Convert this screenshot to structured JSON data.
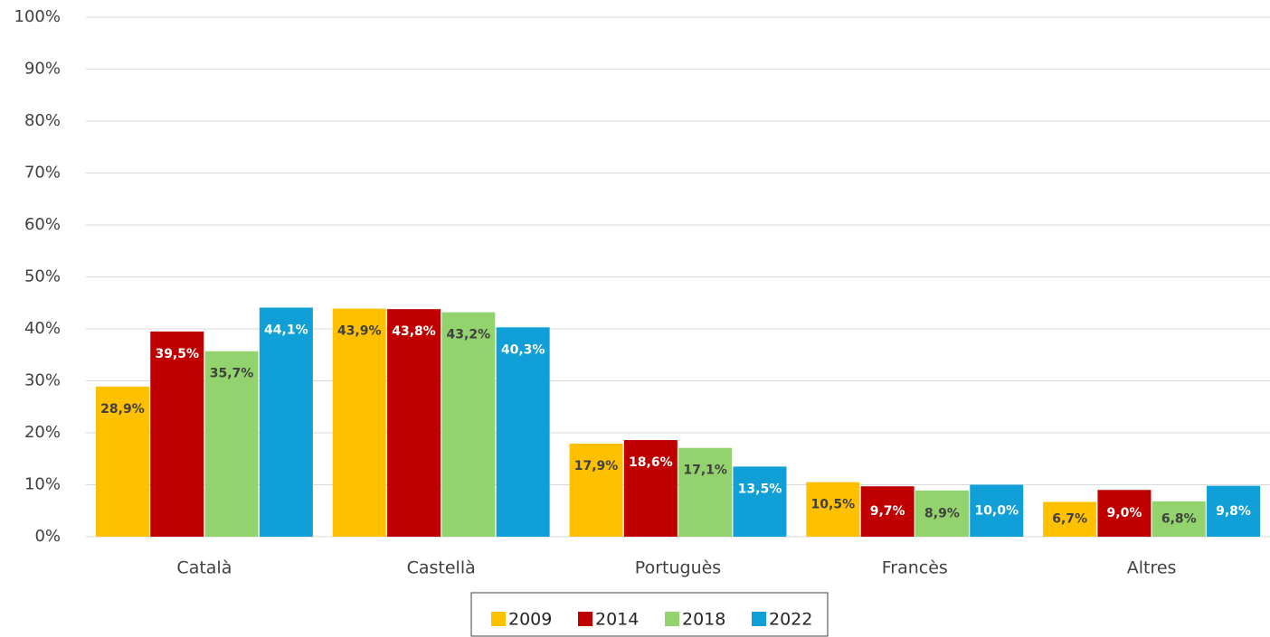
{
  "chart_data": {
    "type": "bar",
    "categories": [
      "Català",
      "Castellà",
      "Portuguès",
      "Francès",
      "Altres"
    ],
    "series": [
      {
        "name": "2009",
        "color": "#FFC000",
        "label_color": "#404040",
        "values": [
          28.9,
          43.9,
          17.9,
          10.5,
          6.7
        ],
        "value_labels": [
          "28,9%",
          "43,9%",
          "17,9%",
          "10,5%",
          "6,7%"
        ]
      },
      {
        "name": "2014",
        "color": "#C00000",
        "label_color": "#ffffff",
        "values": [
          39.5,
          43.8,
          18.6,
          9.7,
          9.0
        ],
        "value_labels": [
          "39,5%",
          "43,8%",
          "18,6%",
          "9,7%",
          "9,0%"
        ]
      },
      {
        "name": "2018",
        "color": "#92D36E",
        "label_color": "#404040",
        "values": [
          35.7,
          43.2,
          17.1,
          8.9,
          6.8
        ],
        "value_labels": [
          "35,7%",
          "43,2%",
          "17,1%",
          "8,9%",
          "6,8%"
        ]
      },
      {
        "name": "2022",
        "color": "#119FD7",
        "label_color": "#ffffff",
        "values": [
          44.1,
          40.3,
          13.5,
          10.0,
          9.8
        ],
        "value_labels": [
          "44,1%",
          "40,3%",
          "13,5%",
          "10,0%",
          "9,8%"
        ]
      }
    ],
    "ylim": [
      0,
      100
    ],
    "yticks": [
      {
        "value": 0,
        "label": "0%"
      },
      {
        "value": 10,
        "label": "10%"
      },
      {
        "value": 20,
        "label": "20%"
      },
      {
        "value": 30,
        "label": "30%"
      },
      {
        "value": 40,
        "label": "40%"
      },
      {
        "value": 50,
        "label": "50%"
      },
      {
        "value": 60,
        "label": "60%"
      },
      {
        "value": 70,
        "label": "70%"
      },
      {
        "value": 80,
        "label": "80%"
      },
      {
        "value": 90,
        "label": "90%"
      },
      {
        "value": 100,
        "label": "100%"
      }
    ],
    "grid": true,
    "legend": "bottom"
  }
}
